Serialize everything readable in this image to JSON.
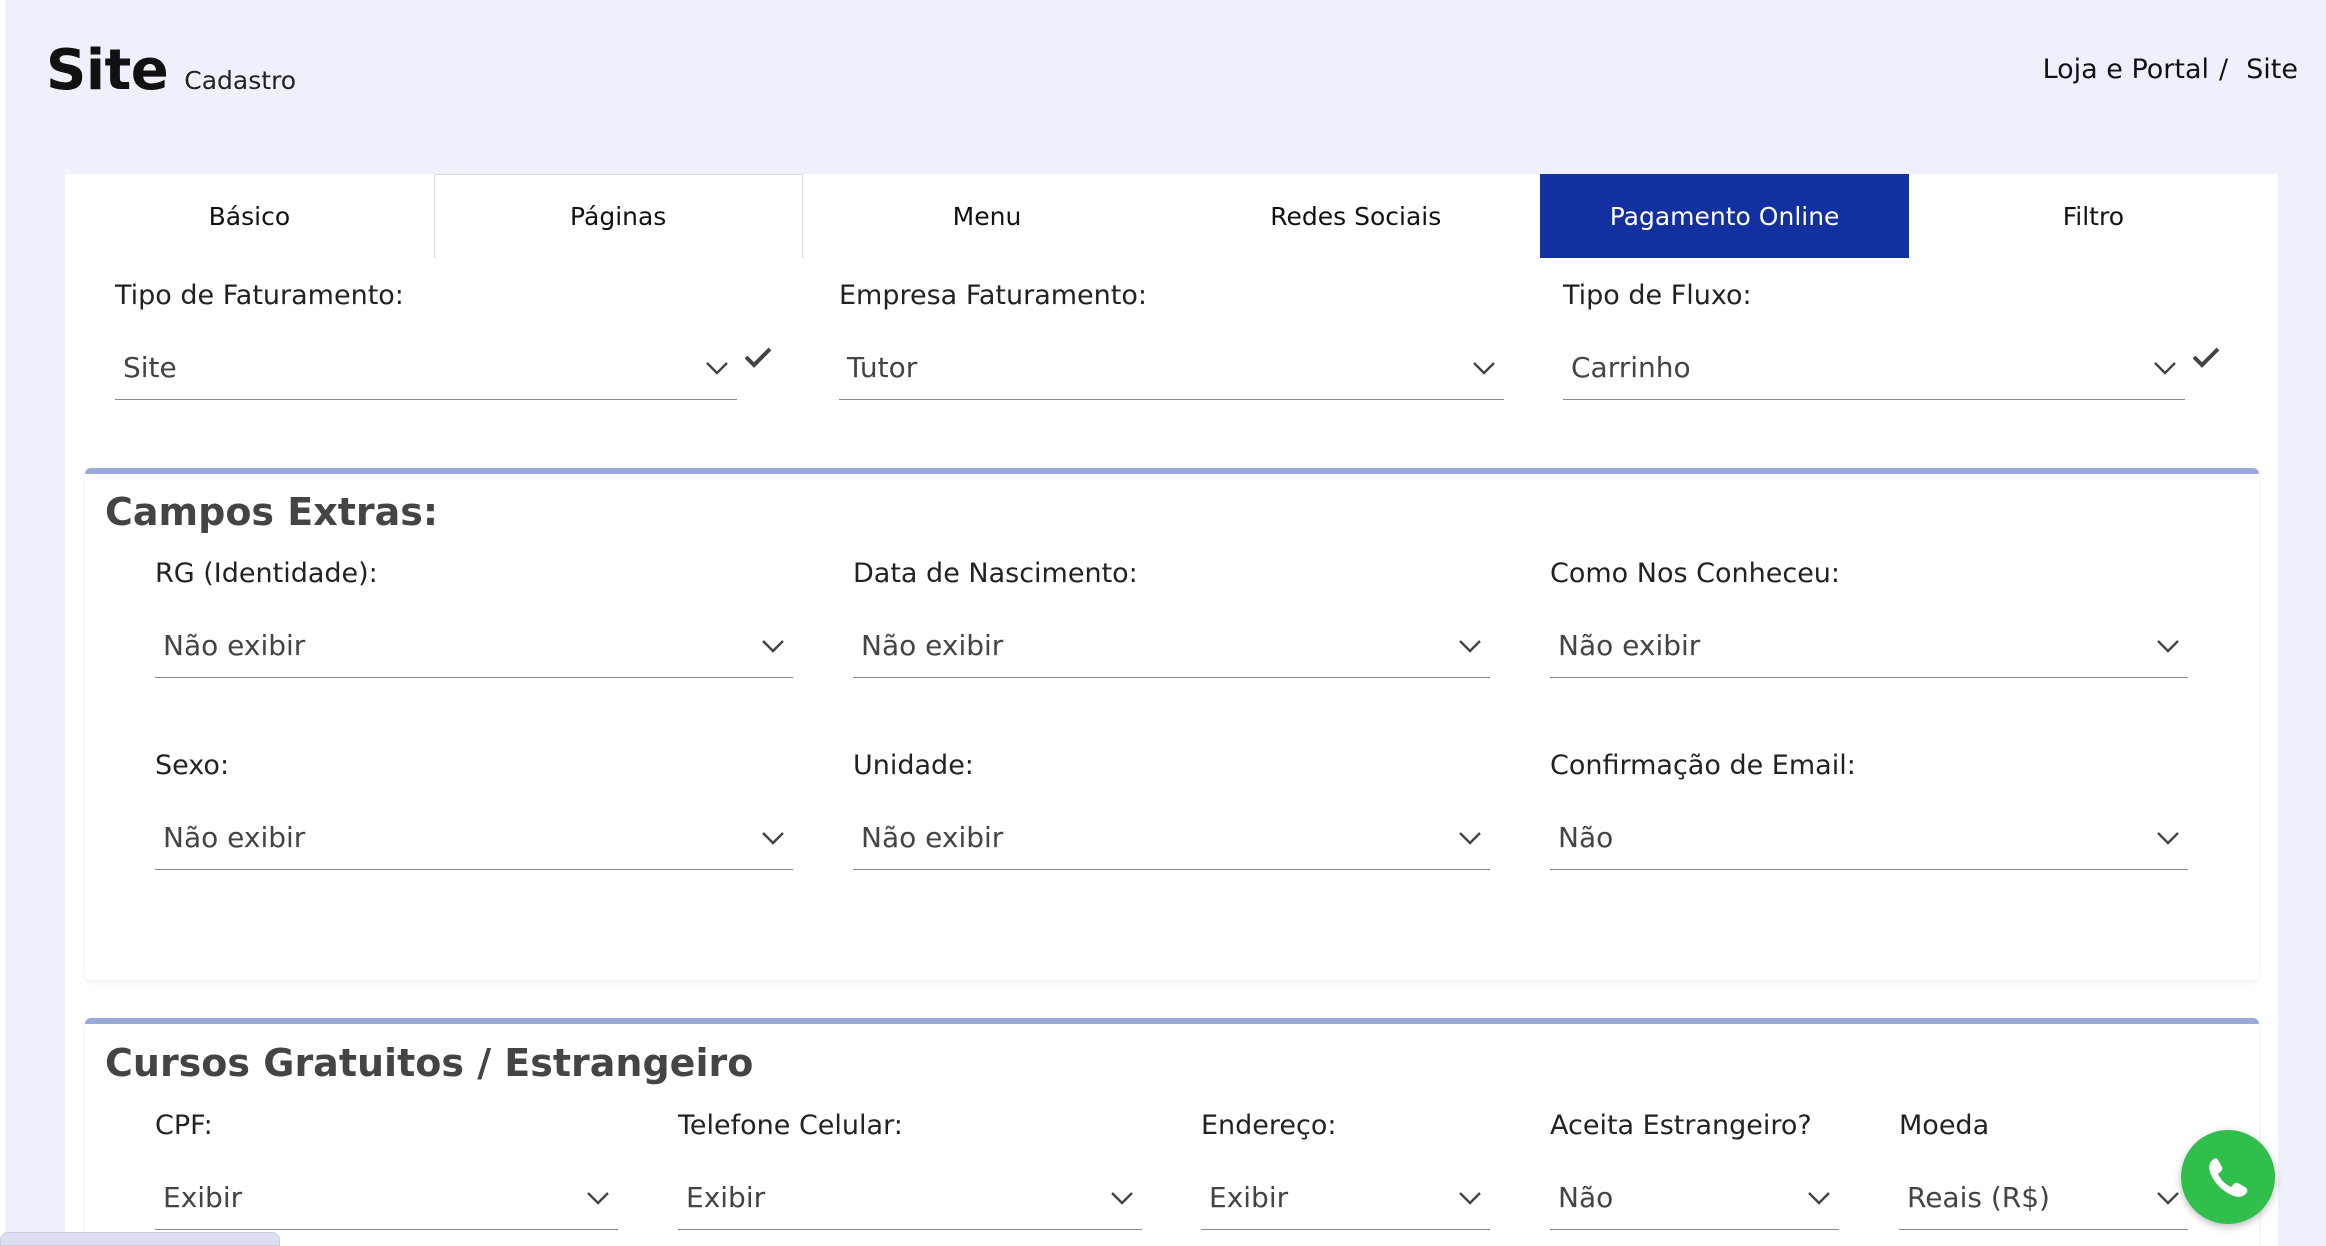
{
  "header": {
    "title": "Site",
    "subtitle": "Cadastro"
  },
  "breadcrumb": {
    "parent": "Loja e Portal",
    "separator": "/",
    "current": "Site"
  },
  "tabs": [
    {
      "label": "Básico"
    },
    {
      "label": "Páginas"
    },
    {
      "label": "Menu"
    },
    {
      "label": "Redes Sociais"
    },
    {
      "label": "Pagamento Online",
      "active": true
    },
    {
      "label": "Filtro"
    }
  ],
  "billing": {
    "tipo_faturamento": {
      "label": "Tipo de Faturamento:",
      "value": "Site"
    },
    "empresa_faturamento": {
      "label": "Empresa Faturamento:",
      "value": "Tutor"
    },
    "tipo_fluxo": {
      "label": "Tipo de Fluxo:",
      "value": "Carrinho"
    }
  },
  "campos_extras": {
    "title": "Campos Extras:",
    "rg": {
      "label": "RG (Identidade):",
      "value": "Não exibir"
    },
    "nascimento": {
      "label": "Data de Nascimento:",
      "value": "Não exibir"
    },
    "conheceu": {
      "label": "Como Nos Conheceu:",
      "value": "Não exibir"
    },
    "sexo": {
      "label": "Sexo:",
      "value": "Não exibir"
    },
    "unidade": {
      "label": "Unidade:",
      "value": "Não exibir"
    },
    "confirma_email": {
      "label": "Confirmação de Email:",
      "value": "Não"
    }
  },
  "cursos": {
    "title": "Cursos Gratuitos / Estrangeiro",
    "cpf": {
      "label": "CPF:",
      "value": "Exibir"
    },
    "celular": {
      "label": "Telefone Celular:",
      "value": "Exibir"
    },
    "endereco": {
      "label": "Endereço:",
      "value": "Exibir"
    },
    "estrangeiro": {
      "label": "Aceita Estrangeiro?",
      "value": "Não"
    },
    "moeda": {
      "label": "Moeda",
      "value": "Reais (R$)"
    }
  },
  "colors": {
    "accent": "#1330a0",
    "section_border": "#9aaad8",
    "background": "#eef1fb",
    "whatsapp": "#2fbf4a"
  },
  "icons": {
    "select": "chevron-down-icon",
    "confirm": "check-icon",
    "chat": "whatsapp-icon"
  }
}
